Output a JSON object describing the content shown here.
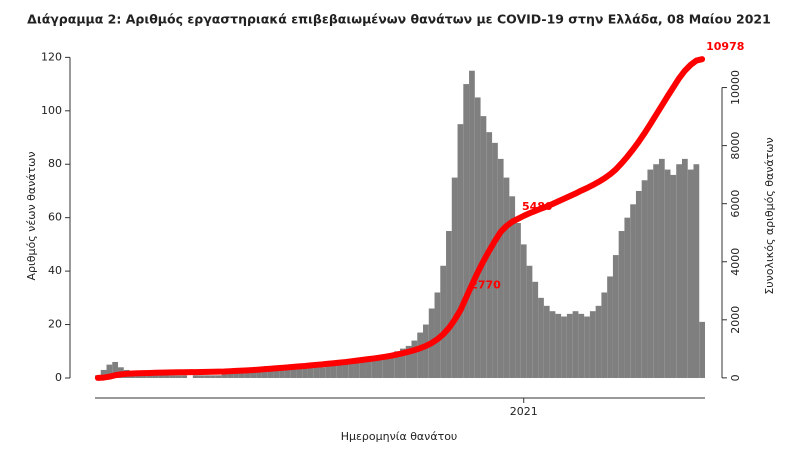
{
  "chart_data": {
    "type": "bar",
    "title": "Διάγραμμα 2: Αριθμός εργαστηριακά επιβεβαιωμένων θανάτων με COVID-19 στην Ελλάδα, 08 Μαίου 2021",
    "x_label": "Ημερομηνία θανάτου",
    "y_label": "Αριθμός νέων θανάτων",
    "y2_label": "Συνολικός αριθμός θανάτων",
    "categories": [
      null,
      null,
      null,
      null,
      null,
      null,
      null,
      null,
      null,
      null,
      null,
      null,
      null,
      null,
      null,
      null,
      null,
      null,
      null,
      null,
      null,
      null,
      null,
      null,
      null,
      null,
      null,
      null,
      null,
      null,
      null,
      null,
      null,
      null,
      null,
      null,
      null,
      null,
      null,
      null,
      null,
      null,
      null,
      null,
      null,
      null,
      null,
      null,
      null,
      null,
      null,
      null,
      null,
      null,
      null,
      null,
      null,
      null,
      null,
      null,
      null,
      null,
      null,
      null,
      null,
      null,
      null,
      null,
      null,
      null,
      null,
      null,
      null,
      null,
      "2021",
      null,
      null,
      null,
      null,
      null,
      null,
      null,
      null,
      null,
      null,
      null,
      null,
      null,
      null,
      null,
      null,
      null,
      null,
      null,
      null,
      null,
      null,
      null,
      null,
      null,
      null,
      null,
      null,
      null,
      null,
      null
    ],
    "series": [
      {
        "type": "bar",
        "color": "#7f7f7f",
        "values": [
          1,
          3,
          5,
          6,
          4,
          3,
          2,
          2,
          1,
          1,
          1,
          1,
          1,
          1,
          1,
          1,
          0,
          1,
          1,
          1,
          1,
          1,
          2,
          2,
          2,
          2,
          2,
          3,
          3,
          3,
          4,
          3,
          4,
          4,
          5,
          4,
          5,
          5,
          5,
          4,
          5,
          6,
          5,
          6,
          6,
          7,
          6,
          7,
          7,
          8,
          8,
          9,
          10,
          11,
          12,
          14,
          17,
          20,
          26,
          32,
          42,
          55,
          75,
          95,
          110,
          115,
          105,
          98,
          92,
          88,
          82,
          75,
          68,
          58,
          50,
          42,
          36,
          30,
          27,
          25,
          24,
          23,
          24,
          25,
          24,
          23,
          25,
          27,
          32,
          38,
          46,
          55,
          60,
          65,
          70,
          74,
          78,
          80,
          82,
          78,
          76,
          80,
          82,
          78,
          80,
          21
        ]
      },
      {
        "type": "line",
        "axis": "y2",
        "color": "#ff0000",
        "values": [
          0,
          10,
          40,
          90,
          120,
          140,
          150,
          160,
          165,
          170,
          175,
          180,
          185,
          190,
          192,
          195,
          196,
          198,
          200,
          205,
          210,
          215,
          220,
          230,
          240,
          250,
          260,
          270,
          285,
          300,
          315,
          330,
          345,
          360,
          380,
          395,
          410,
          430,
          450,
          465,
          485,
          505,
          525,
          545,
          570,
          595,
          620,
          645,
          670,
          700,
          730,
          765,
          805,
          850,
          900,
          955,
          1020,
          1100,
          1200,
          1330,
          1500,
          1720,
          2000,
          2330,
          2770,
          3210,
          3630,
          4020,
          4380,
          4720,
          5030,
          5230,
          5380,
          5480,
          5580,
          5670,
          5750,
          5830,
          5900,
          5990,
          6080,
          6170,
          6260,
          6350,
          6450,
          6540,
          6640,
          6750,
          6870,
          7010,
          7180,
          7390,
          7620,
          7870,
          8140,
          8430,
          8740,
          9060,
          9380,
          9700,
          10010,
          10320,
          10580,
          10780,
          10930,
          10978
        ]
      }
    ],
    "annotations": [
      "2770",
      "5480",
      "10978"
    ],
    "ylim": [
      -3,
      125
    ],
    "yticks": [
      0,
      20,
      40,
      60,
      80,
      100,
      120
    ],
    "y2lim": [
      -280,
      11500
    ],
    "y2ticks": [
      0,
      2000,
      4000,
      6000,
      8000,
      10000
    ]
  }
}
